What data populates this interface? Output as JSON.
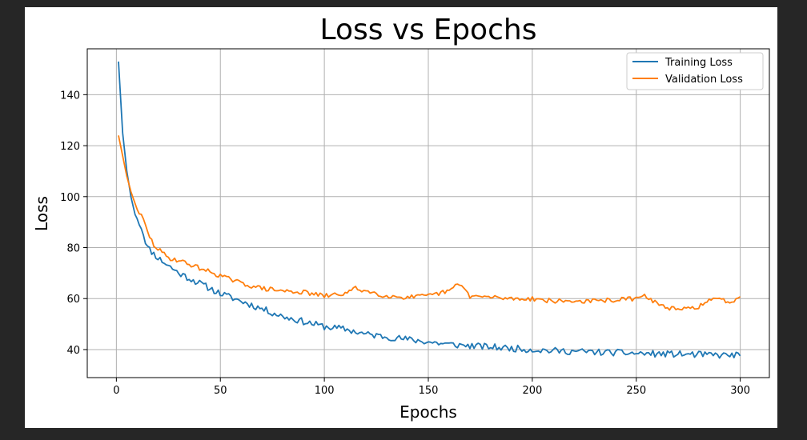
{
  "chart_data": {
    "type": "line",
    "title": "Loss vs Epochs",
    "xlabel": "Epochs",
    "ylabel": "Loss",
    "xlim": [
      -14,
      314
    ],
    "ylim": [
      29,
      158
    ],
    "xticks": [
      0,
      50,
      100,
      150,
      200,
      250,
      300
    ],
    "yticks": [
      40,
      60,
      80,
      100,
      120,
      140
    ],
    "grid": true,
    "legend": "top-right",
    "series": [
      {
        "name": "Training Loss",
        "color": "#1f77b4",
        "keypoints": [
          [
            1,
            153
          ],
          [
            3,
            125
          ],
          [
            5,
            110
          ],
          [
            7,
            100
          ],
          [
            9,
            93
          ],
          [
            12,
            88
          ],
          [
            15,
            80
          ],
          [
            20,
            76
          ],
          [
            25,
            73
          ],
          [
            30,
            70
          ],
          [
            40,
            66
          ],
          [
            50,
            62
          ],
          [
            60,
            59
          ],
          [
            70,
            56
          ],
          [
            80,
            53
          ],
          [
            90,
            51
          ],
          [
            100,
            49
          ],
          [
            110,
            48
          ],
          [
            120,
            46
          ],
          [
            130,
            45
          ],
          [
            140,
            44
          ],
          [
            150,
            43
          ],
          [
            160,
            42
          ],
          [
            170,
            41.5
          ],
          [
            180,
            41
          ],
          [
            190,
            40.5
          ],
          [
            200,
            40
          ],
          [
            210,
            39.5
          ],
          [
            220,
            39.3
          ],
          [
            230,
            39
          ],
          [
            240,
            38.8
          ],
          [
            250,
            38.5
          ],
          [
            260,
            38.3
          ],
          [
            270,
            38.2
          ],
          [
            280,
            38
          ],
          [
            290,
            37.8
          ],
          [
            300,
            37.8
          ]
        ],
        "noise": 1.3,
        "seed": 11
      },
      {
        "name": "Validation Loss",
        "color": "#ff7f0e",
        "keypoints": [
          [
            1,
            124
          ],
          [
            3,
            116
          ],
          [
            5,
            108
          ],
          [
            7,
            102
          ],
          [
            10,
            95
          ],
          [
            13,
            91
          ],
          [
            15,
            86
          ],
          [
            18,
            81
          ],
          [
            22,
            78
          ],
          [
            25,
            76
          ],
          [
            30,
            75
          ],
          [
            40,
            72
          ],
          [
            50,
            69
          ],
          [
            60,
            66
          ],
          [
            70,
            64
          ],
          [
            80,
            63
          ],
          [
            90,
            62.5
          ],
          [
            100,
            61
          ],
          [
            110,
            62
          ],
          [
            115,
            64
          ],
          [
            120,
            63
          ],
          [
            130,
            61
          ],
          [
            140,
            60.5
          ],
          [
            150,
            61
          ],
          [
            160,
            63
          ],
          [
            165,
            66
          ],
          [
            170,
            61
          ],
          [
            180,
            60.5
          ],
          [
            190,
            60
          ],
          [
            200,
            60
          ],
          [
            210,
            59
          ],
          [
            220,
            59
          ],
          [
            230,
            59
          ],
          [
            240,
            59.5
          ],
          [
            250,
            60
          ],
          [
            255,
            61
          ],
          [
            260,
            58
          ],
          [
            265,
            56.5
          ],
          [
            270,
            55.5
          ],
          [
            275,
            56
          ],
          [
            280,
            57
          ],
          [
            285,
            59
          ],
          [
            290,
            60
          ],
          [
            295,
            58.5
          ],
          [
            300,
            61
          ]
        ],
        "noise": 0.9,
        "seed": 29
      }
    ]
  }
}
